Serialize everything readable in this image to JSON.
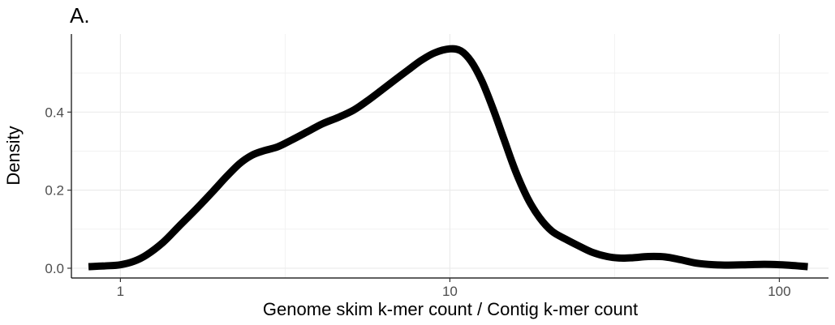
{
  "chart_data": {
    "type": "line",
    "panel_label": "A.",
    "title": "",
    "xlabel": "Genome skim k-mer count / Contig k-mer count",
    "ylabel": "Density",
    "x_scale": "log10",
    "xlim": [
      0.71,
      141
    ],
    "ylim": [
      -0.025,
      0.6
    ],
    "x_ticks": [
      {
        "value": 1,
        "label": "1"
      },
      {
        "value": 10,
        "label": "10"
      },
      {
        "value": 100,
        "label": "100"
      }
    ],
    "y_ticks": [
      {
        "value": 0.0,
        "label": "0.0"
      },
      {
        "value": 0.2,
        "label": "0.2"
      },
      {
        "value": 0.4,
        "label": "0.4"
      }
    ],
    "grid": true,
    "legend": "none",
    "line_color": "#000000",
    "series": [
      {
        "x": [
          0.8,
          0.9,
          1.0,
          1.1,
          1.2,
          1.35,
          1.5,
          1.7,
          1.9,
          2.1,
          2.3,
          2.5,
          2.7,
          3.0,
          3.3,
          3.7,
          4.1,
          4.6,
          5.1,
          5.6,
          6.2,
          6.8,
          7.5,
          8.2,
          9.0,
          10.0,
          10.8,
          11.6,
          12.5,
          13.5,
          14.6,
          15.8,
          17.2,
          18.7,
          20.4,
          22.4,
          24.5,
          27.0,
          30.0,
          33.0,
          36.0,
          40.0,
          45.0,
          50.0,
          56.0,
          63.0,
          70.0,
          80.0,
          90.0,
          100.0,
          110.0,
          122.0
        ],
        "y": [
          0.004,
          0.006,
          0.009,
          0.018,
          0.034,
          0.067,
          0.106,
          0.152,
          0.195,
          0.235,
          0.268,
          0.289,
          0.3,
          0.311,
          0.328,
          0.35,
          0.37,
          0.387,
          0.405,
          0.428,
          0.456,
          0.482,
          0.509,
          0.533,
          0.552,
          0.562,
          0.557,
          0.53,
          0.48,
          0.41,
          0.33,
          0.25,
          0.18,
          0.13,
          0.095,
          0.075,
          0.058,
          0.041,
          0.03,
          0.026,
          0.027,
          0.03,
          0.029,
          0.022,
          0.013,
          0.009,
          0.008,
          0.009,
          0.01,
          0.009,
          0.007,
          0.004
        ]
      }
    ]
  }
}
